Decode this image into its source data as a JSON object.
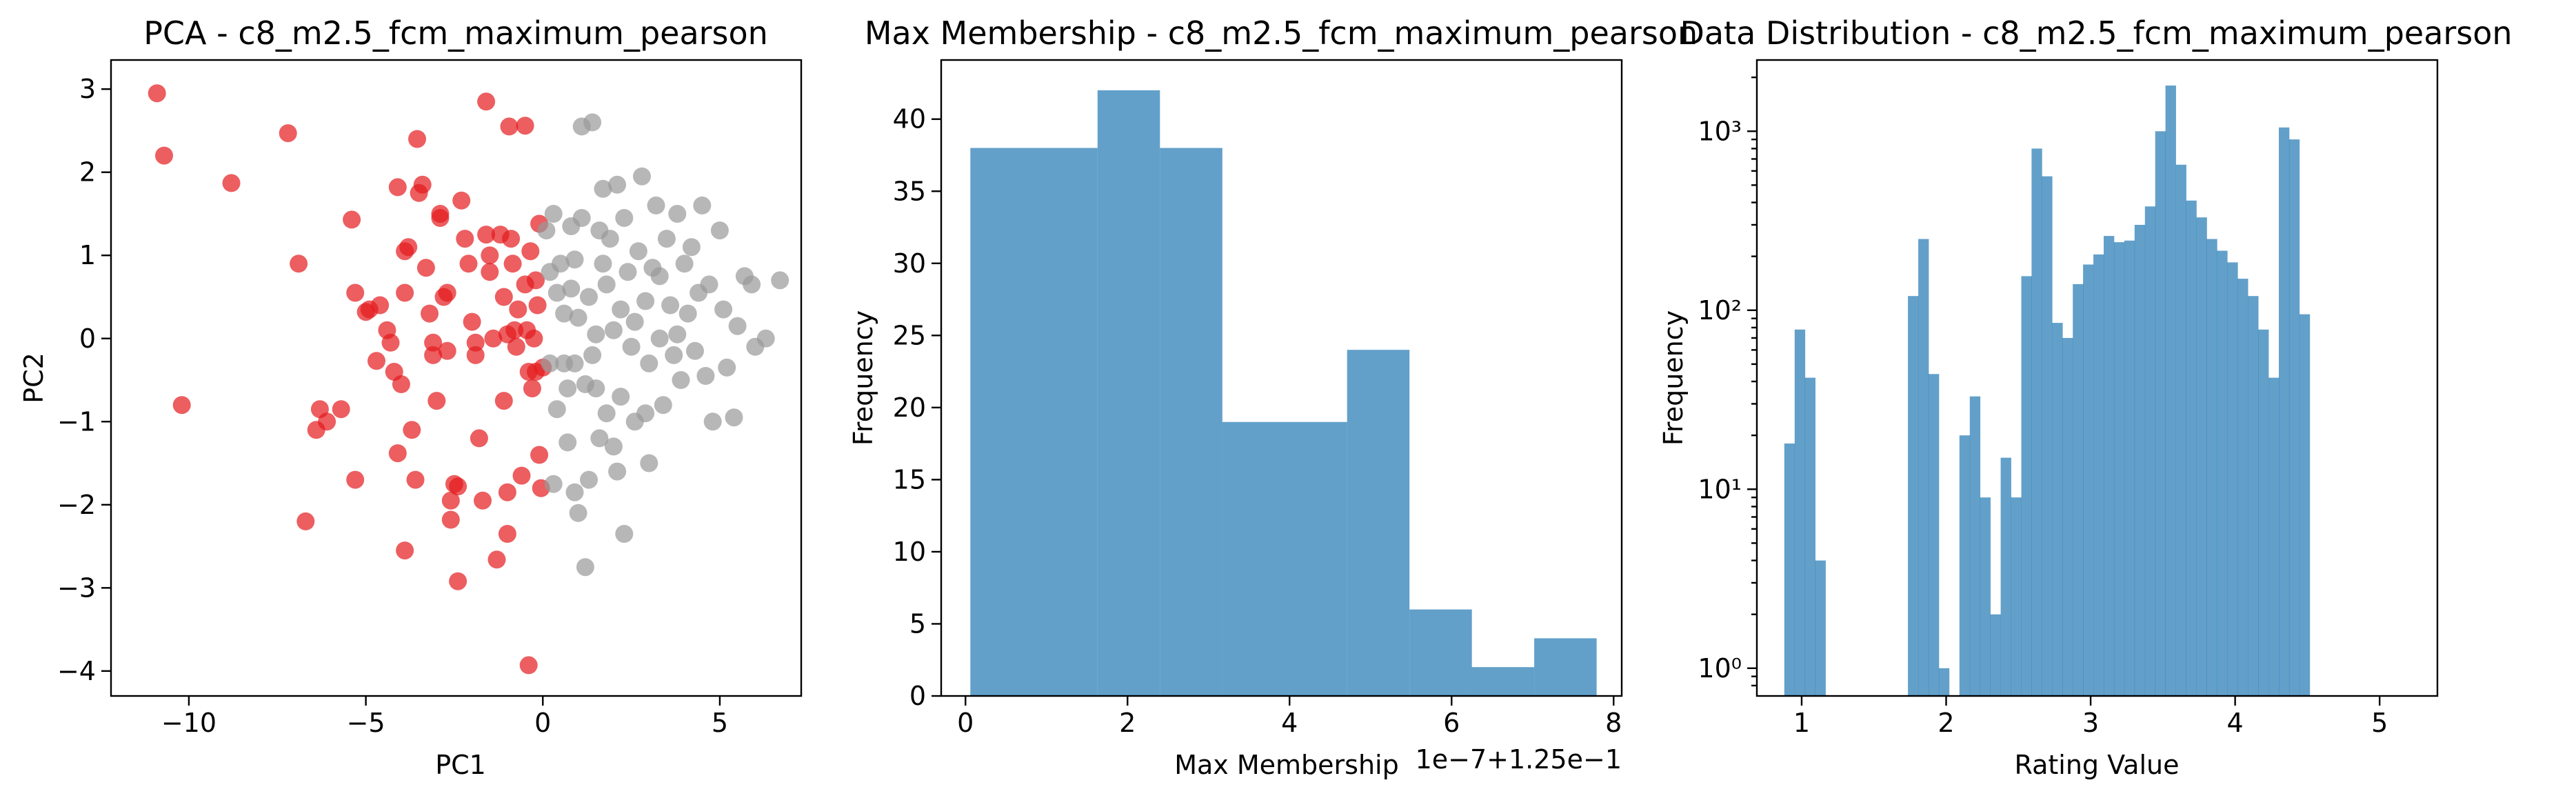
{
  "chart_data": [
    {
      "type": "scatter",
      "title": "PCA - c8_m2.5_fcm_maximum_pearson",
      "xlabel": "PC1",
      "ylabel": "PC2",
      "xlim": [
        -12.2,
        7.3
      ],
      "ylim": [
        -4.3,
        3.35
      ],
      "xticks": [
        -10,
        -5,
        0,
        5
      ],
      "yticks": [
        -4,
        -3,
        -2,
        -1,
        0,
        1,
        2,
        3
      ],
      "xtick_labels": [
        "−10",
        "−5",
        "0",
        "5"
      ],
      "ytick_labels": [
        "−4",
        "−3",
        "−2",
        "−1",
        "0",
        "1",
        "2",
        "3"
      ],
      "grid": false,
      "colors": {
        "red": "#e41a1c",
        "gray": "#999999"
      },
      "series": [
        {
          "color": "red",
          "points": [
            [
              -10.9,
              2.95
            ],
            [
              -10.7,
              2.2
            ],
            [
              -8.8,
              1.87
            ],
            [
              -7.2,
              2.47
            ],
            [
              -6.9,
              0.9
            ],
            [
              -10.2,
              -0.8
            ],
            [
              -6.7,
              -2.2
            ],
            [
              -6.3,
              -0.85
            ],
            [
              -6.4,
              -1.1
            ],
            [
              -6.1,
              -1.0
            ],
            [
              -5.7,
              -0.85
            ],
            [
              -5.3,
              -1.7
            ],
            [
              -5.4,
              1.43
            ],
            [
              -5.3,
              0.55
            ],
            [
              -5.0,
              0.32
            ],
            [
              -4.9,
              0.35
            ],
            [
              -4.7,
              -0.27
            ],
            [
              -4.6,
              0.4
            ],
            [
              -4.4,
              0.1
            ],
            [
              -4.3,
              -0.05
            ],
            [
              -4.2,
              -0.4
            ],
            [
              -4.0,
              -0.55
            ],
            [
              -4.1,
              -1.38
            ],
            [
              -3.9,
              -2.55
            ],
            [
              -4.1,
              1.82
            ],
            [
              -3.9,
              1.05
            ],
            [
              -3.8,
              1.1
            ],
            [
              -3.9,
              0.55
            ],
            [
              -3.7,
              -1.1
            ],
            [
              -3.6,
              -1.7
            ],
            [
              -3.55,
              2.4
            ],
            [
              -3.5,
              1.75
            ],
            [
              -3.4,
              1.85
            ],
            [
              -3.3,
              0.85
            ],
            [
              -3.2,
              0.3
            ],
            [
              -3.1,
              -0.05
            ],
            [
              -3.1,
              -0.2
            ],
            [
              -3.0,
              -0.75
            ],
            [
              -2.9,
              1.5
            ],
            [
              -2.9,
              1.45
            ],
            [
              -2.8,
              0.5
            ],
            [
              -2.7,
              0.55
            ],
            [
              -2.7,
              -0.15
            ],
            [
              -2.6,
              -1.95
            ],
            [
              -2.6,
              -2.18
            ],
            [
              -2.5,
              -1.75
            ],
            [
              -2.4,
              -1.78
            ],
            [
              -2.4,
              -2.92
            ],
            [
              -2.3,
              1.66
            ],
            [
              -2.2,
              1.2
            ],
            [
              -2.1,
              0.9
            ],
            [
              -2.0,
              0.2
            ],
            [
              -1.9,
              -0.2
            ],
            [
              -1.9,
              -0.05
            ],
            [
              -1.8,
              -1.2
            ],
            [
              -1.7,
              -1.95
            ],
            [
              -1.6,
              2.85
            ],
            [
              -1.6,
              1.25
            ],
            [
              -1.5,
              1.0
            ],
            [
              -1.5,
              0.8
            ],
            [
              -1.4,
              0.0
            ],
            [
              -1.3,
              -2.66
            ],
            [
              -1.2,
              1.25
            ],
            [
              -1.1,
              0.5
            ],
            [
              -1.0,
              0.05
            ],
            [
              -1.1,
              -0.75
            ],
            [
              -1.0,
              -1.85
            ],
            [
              -1.0,
              -2.35
            ],
            [
              -0.95,
              2.55
            ],
            [
              -0.9,
              1.2
            ],
            [
              -0.85,
              0.9
            ],
            [
              -0.8,
              0.1
            ],
            [
              -0.75,
              -0.1
            ],
            [
              -0.7,
              0.35
            ],
            [
              -0.6,
              -1.65
            ],
            [
              -0.5,
              0.65
            ],
            [
              -0.5,
              2.56
            ],
            [
              -0.45,
              0.1
            ],
            [
              -0.4,
              -0.4
            ],
            [
              -0.4,
              -3.93
            ],
            [
              -0.35,
              1.05
            ],
            [
              -0.3,
              -0.6
            ],
            [
              -0.25,
              0.0
            ],
            [
              -0.2,
              0.7
            ],
            [
              -0.15,
              0.4
            ],
            [
              -0.1,
              -1.4
            ],
            [
              -0.05,
              -1.8
            ],
            [
              0.0,
              -0.35
            ],
            [
              -0.1,
              1.38
            ],
            [
              -0.2,
              -0.4
            ]
          ]
        },
        {
          "color": "gray",
          "points": [
            [
              0.1,
              1.3
            ],
            [
              0.2,
              0.8
            ],
            [
              0.3,
              1.5
            ],
            [
              0.2,
              -0.3
            ],
            [
              0.3,
              -1.75
            ],
            [
              0.4,
              -0.85
            ],
            [
              0.5,
              0.9
            ],
            [
              0.6,
              0.3
            ],
            [
              0.7,
              -0.6
            ],
            [
              0.7,
              -1.25
            ],
            [
              0.8,
              1.35
            ],
            [
              0.9,
              0.95
            ],
            [
              0.9,
              -1.85
            ],
            [
              1.0,
              0.25
            ],
            [
              1.0,
              -2.1
            ],
            [
              1.1,
              2.55
            ],
            [
              1.2,
              -0.55
            ],
            [
              1.3,
              0.5
            ],
            [
              1.3,
              -1.7
            ],
            [
              1.4,
              2.6
            ],
            [
              1.4,
              -0.2
            ],
            [
              1.5,
              0.05
            ],
            [
              1.6,
              1.3
            ],
            [
              1.6,
              -1.2
            ],
            [
              1.7,
              1.8
            ],
            [
              1.8,
              0.65
            ],
            [
              1.8,
              -0.9
            ],
            [
              1.9,
              1.2
            ],
            [
              2.0,
              0.1
            ],
            [
              2.0,
              -1.3
            ],
            [
              2.1,
              1.85
            ],
            [
              2.2,
              0.35
            ],
            [
              2.2,
              -0.7
            ],
            [
              2.3,
              1.45
            ],
            [
              2.3,
              -2.35
            ],
            [
              2.4,
              0.8
            ],
            [
              2.5,
              -0.1
            ],
            [
              2.6,
              -1.0
            ],
            [
              2.7,
              1.05
            ],
            [
              2.8,
              1.95
            ],
            [
              2.9,
              0.45
            ],
            [
              3.0,
              -0.3
            ],
            [
              3.0,
              -1.5
            ],
            [
              3.1,
              0.85
            ],
            [
              3.2,
              1.6
            ],
            [
              3.3,
              0.0
            ],
            [
              3.4,
              -0.8
            ],
            [
              3.5,
              1.2
            ],
            [
              3.6,
              0.4
            ],
            [
              3.7,
              -0.2
            ],
            [
              3.8,
              1.5
            ],
            [
              3.9,
              -0.5
            ],
            [
              4.0,
              0.9
            ],
            [
              4.1,
              0.3
            ],
            [
              4.2,
              1.1
            ],
            [
              4.3,
              -0.15
            ],
            [
              4.5,
              1.6
            ],
            [
              4.6,
              -0.45
            ],
            [
              4.7,
              0.65
            ],
            [
              4.8,
              -1.0
            ],
            [
              5.0,
              1.3
            ],
            [
              5.1,
              0.35
            ],
            [
              5.2,
              -0.35
            ],
            [
              5.4,
              -0.95
            ],
            [
              5.5,
              0.15
            ],
            [
              5.7,
              0.75
            ],
            [
              5.9,
              0.65
            ],
            [
              6.0,
              -0.1
            ],
            [
              6.3,
              0.0
            ],
            [
              6.7,
              0.7
            ],
            [
              1.2,
              -2.75
            ],
            [
              0.9,
              -0.3
            ],
            [
              1.5,
              -0.6
            ],
            [
              2.6,
              0.2
            ],
            [
              3.3,
              0.75
            ],
            [
              4.4,
              0.55
            ],
            [
              0.6,
              -0.3
            ],
            [
              2.1,
              -1.6
            ],
            [
              1.1,
              1.45
            ],
            [
              0.4,
              0.55
            ],
            [
              3.8,
              0.05
            ],
            [
              2.9,
              -0.9
            ],
            [
              1.7,
              0.9
            ],
            [
              0.8,
              0.6
            ]
          ]
        }
      ]
    },
    {
      "type": "bar",
      "title": "Max Membership - c8_m2.5_fcm_maximum_pearson",
      "xlabel": "Max Membership",
      "ylabel": "Frequency",
      "x_offset_label": "1e−7+1.25e−1",
      "xlim": [
        -0.3,
        8.1
      ],
      "ylim": [
        0,
        44.1
      ],
      "xticks": [
        0,
        2,
        4,
        6,
        8
      ],
      "yticks": [
        0,
        5,
        10,
        15,
        20,
        25,
        30,
        35,
        40
      ],
      "xtick_labels": [
        "0",
        "2",
        "4",
        "6",
        "8"
      ],
      "ytick_labels": [
        "0",
        "5",
        "10",
        "15",
        "20",
        "25",
        "30",
        "35",
        "40"
      ],
      "grid": false,
      "color": "#1f77b4",
      "bins": [
        [
          0.06,
          1.63,
          38
        ],
        [
          1.63,
          2.4,
          42
        ],
        [
          2.4,
          3.17,
          38
        ],
        [
          3.17,
          4.71,
          19
        ],
        [
          4.71,
          5.48,
          24
        ],
        [
          5.48,
          6.25,
          6
        ],
        [
          6.25,
          7.02,
          2
        ],
        [
          7.02,
          7.79,
          4
        ]
      ]
    },
    {
      "type": "bar",
      "title": "Data Distribution - c8_m2.5_fcm_maximum_pearson",
      "xlabel": "Rating Value",
      "ylabel": "Frequency",
      "yscale": "log",
      "xlim": [
        0.69,
        5.4
      ],
      "ylim": [
        0.7,
        2500
      ],
      "xticks": [
        1,
        2,
        3,
        4,
        5
      ],
      "xtick_labels": [
        "1",
        "2",
        "3",
        "4",
        "5"
      ],
      "yticks": [
        1,
        10,
        100,
        1000
      ],
      "ytick_labels": [
        "10⁰",
        "10¹",
        "10²",
        "10³"
      ],
      "grid": false,
      "color": "#1f77b4",
      "bin_start": 0.88,
      "bin_width": 0.0713,
      "counts": [
        18,
        78,
        42,
        4,
        0,
        0,
        0,
        0,
        0,
        0,
        0,
        0,
        120,
        250,
        44,
        1,
        0,
        20,
        33,
        9,
        2,
        15,
        9,
        155,
        800,
        560,
        85,
        70,
        140,
        180,
        205,
        260,
        240,
        245,
        300,
        380,
        1000,
        1800,
        650,
        410,
        330,
        250,
        215,
        185,
        150,
        120,
        78,
        42,
        1050,
        900,
        95
      ]
    }
  ]
}
